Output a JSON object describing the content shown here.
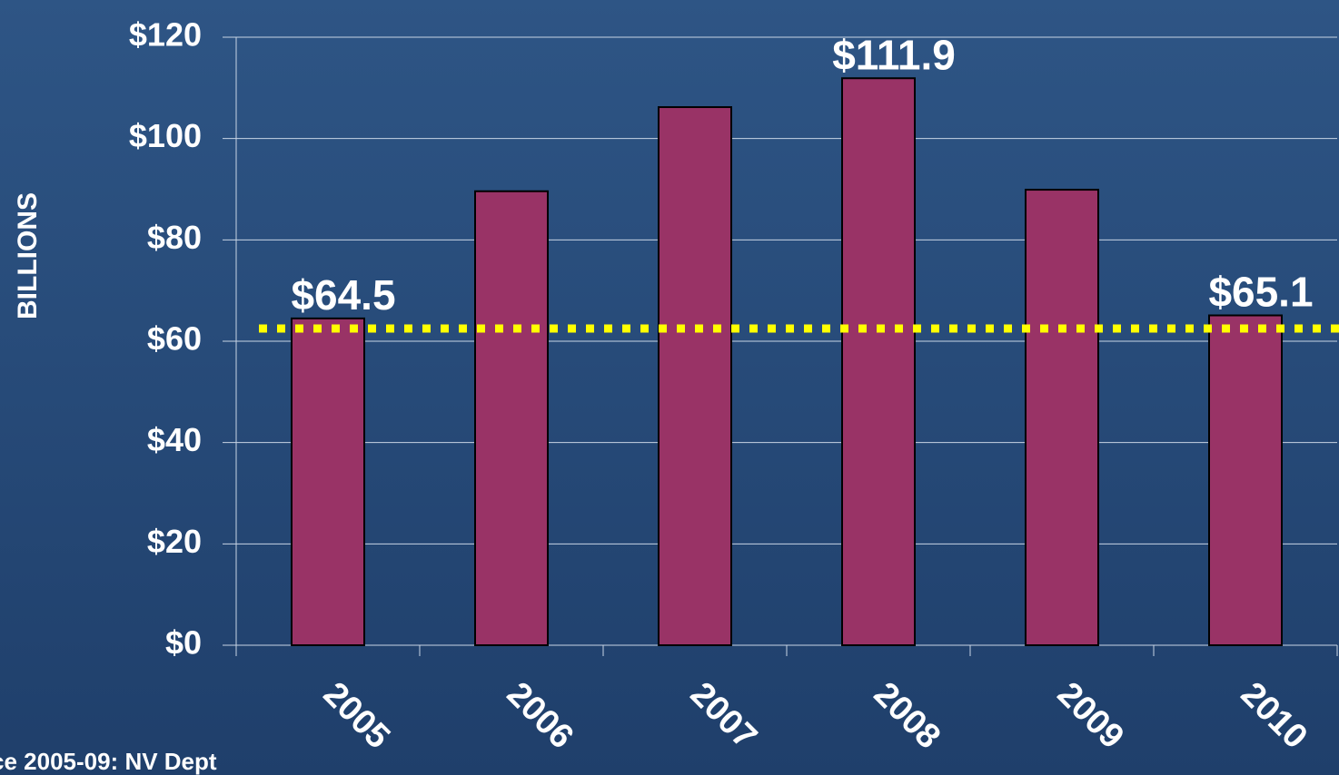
{
  "chart_data": {
    "type": "bar",
    "y_label": "BILLIONS",
    "categories": [
      "2005",
      "2006",
      "2007",
      "2008",
      "2009",
      "2010"
    ],
    "values": [
      64.5,
      89.6,
      106.2,
      111.9,
      89.9,
      65.1
    ],
    "value_labels": [
      "$64.5",
      null,
      null,
      "$111.9",
      null,
      "$65.1"
    ],
    "color": "#993366",
    "ylim": [
      0,
      120
    ],
    "yticks": [
      {
        "value": 0,
        "label": "$0"
      },
      {
        "value": 20,
        "label": "$20"
      },
      {
        "value": 40,
        "label": "$40"
      },
      {
        "value": 60,
        "label": "$60"
      },
      {
        "value": 80,
        "label": "$80"
      },
      {
        "value": 100,
        "label": "$100"
      },
      {
        "value": 120,
        "label": "$120"
      }
    ],
    "grid": true,
    "reference_line": {
      "value": 62.5,
      "color": "#ffff00"
    },
    "source": "ce 2005-09:  NV Dept"
  }
}
